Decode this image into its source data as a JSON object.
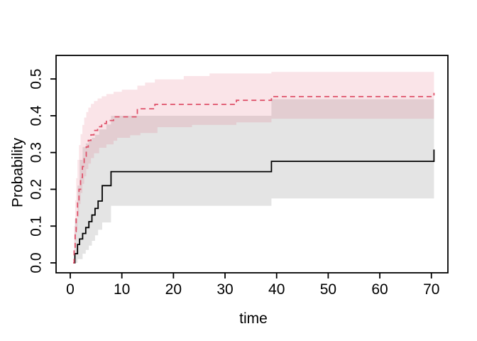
{
  "figure": {
    "background": "#ffffff",
    "title": ""
  },
  "chart_data": {
    "type": "line",
    "subtype": "step-survival-curves-with-confidence-bands",
    "title": "",
    "xlabel": "time",
    "ylabel": "Probability",
    "grid": false,
    "legend": null,
    "x_axis": {
      "range": [
        -2.75,
        73.2
      ],
      "ticks": [
        0,
        10,
        20,
        30,
        40,
        50,
        60,
        70
      ],
      "tick_labels": [
        "0",
        "10",
        "20",
        "30",
        "40",
        "50",
        "60",
        "70"
      ]
    },
    "y_axis": {
      "range": [
        -0.027,
        0.564
      ],
      "ticks": [
        0.0,
        0.1,
        0.2,
        0.3,
        0.4,
        0.5
      ],
      "tick_labels": [
        "0.0",
        "0.1",
        "0.2",
        "0.3",
        "0.4",
        "0.5"
      ]
    },
    "frame_color": "#000000",
    "bands": [
      {
        "name": "confidence-band-group1-gray",
        "color": "#000000",
        "opacity": 0.105,
        "lower": [
          [
            0.6,
            0
          ],
          [
            1.4,
            0.01
          ],
          [
            2.4,
            0.025
          ],
          [
            3.0,
            0.035
          ],
          [
            3.6,
            0.047
          ],
          [
            4.2,
            0.06
          ],
          [
            4.8,
            0.075
          ],
          [
            5.4,
            0.09
          ],
          [
            6.2,
            0.11
          ],
          [
            7.9,
            0.155
          ],
          [
            39,
            0.175
          ],
          [
            70.5,
            0.175
          ]
        ],
        "upper": [
          [
            0.6,
            0
          ],
          [
            0.9,
            0.12
          ],
          [
            1.4,
            0.21
          ],
          [
            1.8,
            0.28
          ],
          [
            2.4,
            0.315
          ],
          [
            3.0,
            0.325
          ],
          [
            3.6,
            0.333
          ],
          [
            4.2,
            0.34
          ],
          [
            4.8,
            0.348
          ],
          [
            5.6,
            0.363
          ],
          [
            7.0,
            0.376
          ],
          [
            7.9,
            0.4
          ],
          [
            39,
            0.445
          ],
          [
            70.5,
            0.445
          ]
        ]
      },
      {
        "name": "confidence-band-group2-pink",
        "color": "#DF536B",
        "opacity": 0.155,
        "lower": [
          [
            0.55,
            0
          ],
          [
            0.75,
            0.03
          ],
          [
            0.95,
            0.06
          ],
          [
            1.15,
            0.09
          ],
          [
            1.4,
            0.125
          ],
          [
            1.7,
            0.16
          ],
          [
            2.0,
            0.19
          ],
          [
            2.35,
            0.215
          ],
          [
            2.7,
            0.235
          ],
          [
            3.1,
            0.255
          ],
          [
            3.5,
            0.27
          ],
          [
            4.0,
            0.285
          ],
          [
            4.6,
            0.298
          ],
          [
            5.6,
            0.313
          ],
          [
            7.0,
            0.322
          ],
          [
            8.4,
            0.332
          ],
          [
            9.1,
            0.34
          ],
          [
            11.6,
            0.347
          ],
          [
            13.6,
            0.353
          ],
          [
            16.9,
            0.369
          ],
          [
            23.6,
            0.375
          ],
          [
            32.2,
            0.382
          ],
          [
            39,
            0.392
          ],
          [
            70.5,
            0.392
          ]
        ],
        "upper": [
          [
            0.55,
            0
          ],
          [
            0.75,
            0.1
          ],
          [
            0.95,
            0.17
          ],
          [
            1.15,
            0.23
          ],
          [
            1.4,
            0.28
          ],
          [
            1.7,
            0.32
          ],
          [
            2.0,
            0.35
          ],
          [
            2.35,
            0.375
          ],
          [
            2.7,
            0.395
          ],
          [
            3.1,
            0.41
          ],
          [
            3.5,
            0.422
          ],
          [
            4.0,
            0.432
          ],
          [
            4.6,
            0.44
          ],
          [
            5.3,
            0.447
          ],
          [
            6.1,
            0.453
          ],
          [
            7.0,
            0.459
          ],
          [
            8.4,
            0.465
          ],
          [
            10,
            0.471
          ],
          [
            13,
            0.482
          ],
          [
            14.5,
            0.49
          ],
          [
            16.4,
            0.499
          ],
          [
            22,
            0.508
          ],
          [
            27,
            0.515
          ],
          [
            39,
            0.519
          ],
          [
            70.5,
            0.519
          ]
        ]
      }
    ],
    "series": [
      {
        "name": "estimate-curve-group1-black",
        "color": "#000000",
        "line_style": "solid",
        "dash": "",
        "width": 1.8,
        "steps": [
          [
            0.6,
            0
          ],
          [
            0.9,
            0.025
          ],
          [
            1.4,
            0.05
          ],
          [
            1.8,
            0.065
          ],
          [
            2.4,
            0.08
          ],
          [
            3.0,
            0.096
          ],
          [
            3.6,
            0.112
          ],
          [
            4.2,
            0.13
          ],
          [
            4.8,
            0.148
          ],
          [
            5.4,
            0.168
          ],
          [
            6.2,
            0.21
          ],
          [
            7.9,
            0.248
          ],
          [
            39,
            0.276
          ],
          [
            70.5,
            0.308
          ]
        ]
      },
      {
        "name": "estimate-curve-group2-red-dashed",
        "color": "#DF536B",
        "line_style": "dashed",
        "dash": "7,5",
        "width": 1.8,
        "steps": [
          [
            0.55,
            0
          ],
          [
            0.75,
            0.04
          ],
          [
            0.95,
            0.085
          ],
          [
            1.15,
            0.125
          ],
          [
            1.4,
            0.163
          ],
          [
            1.7,
            0.2
          ],
          [
            2.0,
            0.232
          ],
          [
            2.35,
            0.262
          ],
          [
            2.7,
            0.29
          ],
          [
            3.1,
            0.315
          ],
          [
            3.5,
            0.333
          ],
          [
            4.0,
            0.348
          ],
          [
            4.6,
            0.36
          ],
          [
            5.3,
            0.37
          ],
          [
            6.1,
            0.379
          ],
          [
            7.0,
            0.387
          ],
          [
            8.4,
            0.397
          ],
          [
            13.0,
            0.419
          ],
          [
            16.4,
            0.431
          ],
          [
            32.2,
            0.442
          ],
          [
            39,
            0.452
          ],
          [
            70.5,
            0.462
          ]
        ]
      }
    ]
  }
}
